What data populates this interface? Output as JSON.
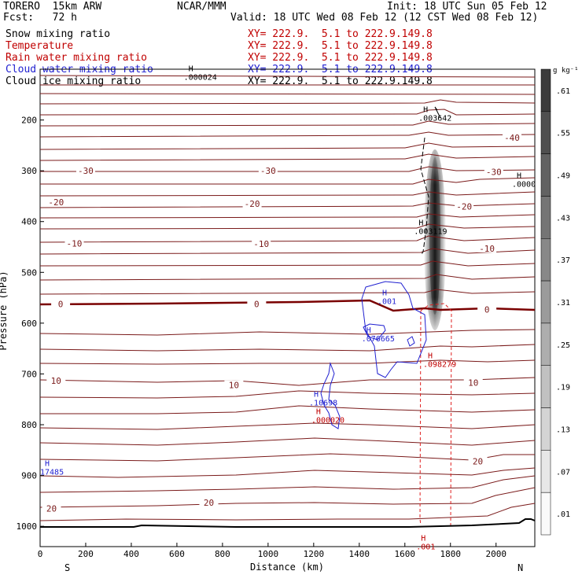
{
  "header": {
    "model": "TORERO  15km ARW",
    "org": "NCAR/MMM",
    "init": "Init: 18 UTC Sun 05 Feb 12",
    "fcst": "Fcst:   72 h",
    "valid": "Valid: 18 UTC Wed 08 Feb 12 (12 CST Wed 08 Feb 12)"
  },
  "legend": [
    {
      "name": "Snow mixing ratio",
      "xy": "XY= 222.9.  5.1 to 222.9.149.8",
      "color": "#000000"
    },
    {
      "name": "Temperature",
      "xy": "XY= 222.9.  5.1 to 222.9.149.8",
      "color": "#c00000"
    },
    {
      "name": "Rain water mixing ratio",
      "xy": "XY= 222.9.  5.1 to 222.9.149.8",
      "color": "#c00000"
    },
    {
      "name": "Cloud water mixing ratio",
      "xy": "XY= 222.9.  5.1 to 222.9.149.8",
      "color": "#1f1fd0"
    },
    {
      "name": "Cloud ice mixing ratio",
      "xy": "XY= 222.9.  5.1 to 222.9.149.8",
      "color": "#000000"
    }
  ],
  "chart_data": {
    "type": "cross-section contour",
    "xlabel": "Distance (km)",
    "ylabel": "Pressure (hPa)",
    "xlim": [
      0,
      2170
    ],
    "ylim": [
      1040,
      100
    ],
    "x_ticks": [
      0,
      200,
      400,
      600,
      800,
      1000,
      1200,
      1400,
      1600,
      1800,
      2000
    ],
    "y_ticks": [
      200,
      300,
      400,
      500,
      600,
      700,
      800,
      900,
      1000
    ],
    "end_labels": {
      "left": "S",
      "right": "N"
    },
    "colorbar": {
      "unit": "g kg⁻¹",
      "labels": [
        ".61",
        ".55",
        ".49",
        ".43",
        ".37",
        ".31",
        ".25",
        ".19",
        ".13",
        ".07",
        ".01"
      ]
    },
    "temperature_labels": [
      {
        "text": "-40",
        "x": 2070,
        "p": 235
      },
      {
        "text": "-30",
        "x": 200,
        "p": 300
      },
      {
        "text": "-30",
        "x": 1000,
        "p": 300
      },
      {
        "text": "-30",
        "x": 1990,
        "p": 302
      },
      {
        "text": "-20",
        "x": 70,
        "p": 362
      },
      {
        "text": "-20",
        "x": 930,
        "p": 365
      },
      {
        "text": "-20",
        "x": 1860,
        "p": 370
      },
      {
        "text": "-10",
        "x": 150,
        "p": 443
      },
      {
        "text": "-10",
        "x": 970,
        "p": 444
      },
      {
        "text": "-10",
        "x": 1960,
        "p": 453
      },
      {
        "text": "0",
        "x": 90,
        "p": 562
      },
      {
        "text": "0",
        "x": 950,
        "p": 562
      },
      {
        "text": "0",
        "x": 1960,
        "p": 573
      },
      {
        "text": "10",
        "x": 70,
        "p": 713
      },
      {
        "text": "10",
        "x": 850,
        "p": 722
      },
      {
        "text": "10",
        "x": 1900,
        "p": 717
      },
      {
        "text": "20",
        "x": 1920,
        "p": 872
      },
      {
        "text": "20",
        "x": 50,
        "p": 965
      },
      {
        "text": "20",
        "x": 740,
        "p": 953
      }
    ],
    "extrema_labels": [
      {
        "text": ".000024",
        "x": 630,
        "p": 115,
        "color": "#000000"
      },
      {
        "text": ".003642",
        "x": 1660,
        "p": 195,
        "color": "#000000"
      },
      {
        "text": ".0000",
        "x": 2070,
        "p": 325,
        "color": "#000000"
      },
      {
        "text": ".003119",
        "x": 1640,
        "p": 418,
        "color": "#000000"
      },
      {
        "text": ".001",
        "x": 1480,
        "p": 556,
        "color": "#1f1fd0"
      },
      {
        "text": ".076665",
        "x": 1410,
        "p": 630,
        "color": "#1f1fd0"
      },
      {
        "text": ".098279",
        "x": 1680,
        "p": 680,
        "color": "#c00000"
      },
      {
        "text": ".10698",
        "x": 1180,
        "p": 756,
        "color": "#1f1fd0"
      },
      {
        "text": ".000020",
        "x": 1190,
        "p": 790,
        "color": "#c00000"
      },
      {
        "text": "17485",
        "x": 0,
        "p": 892,
        "color": "#1f1fd0"
      },
      {
        "text": ".001",
        "x": 1650,
        "p": 1039,
        "color": "#c00000"
      }
    ]
  }
}
